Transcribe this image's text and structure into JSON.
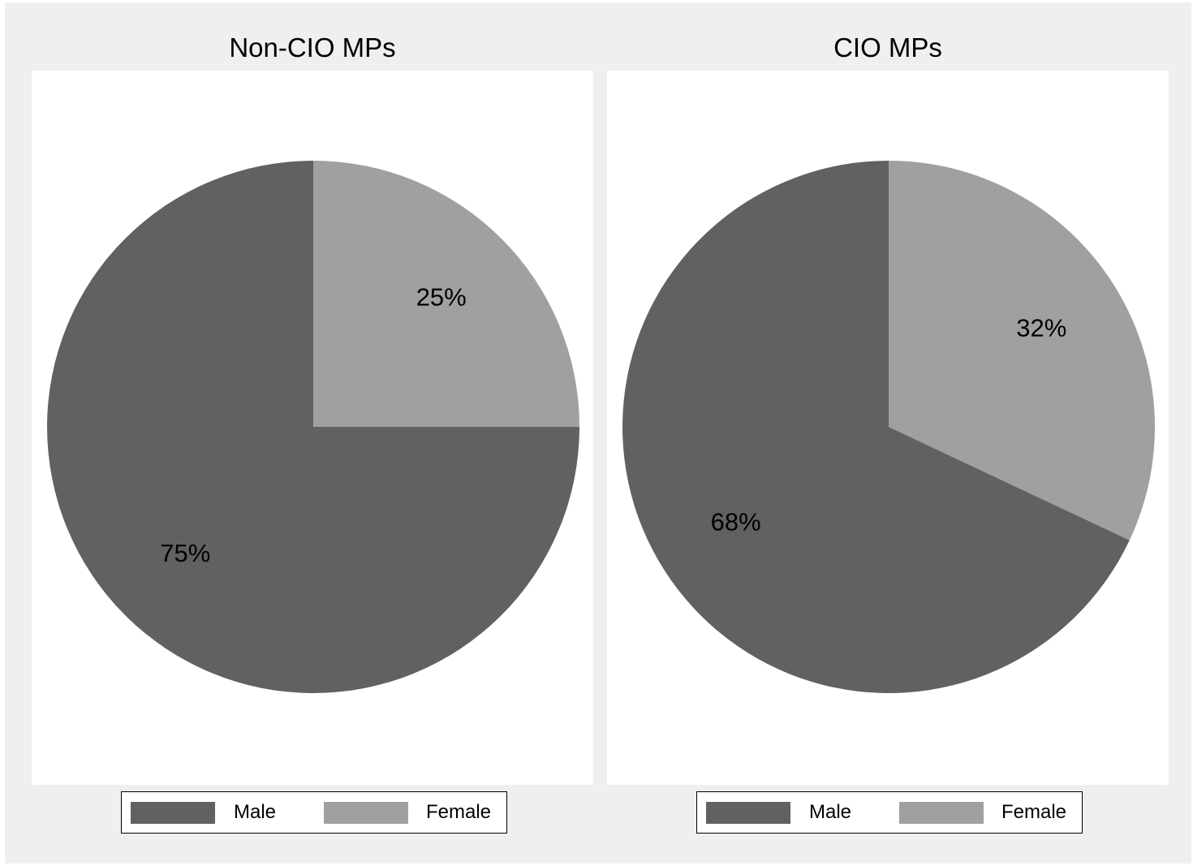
{
  "chart_data": [
    {
      "type": "pie",
      "title": "Non-CIO MPs",
      "categories": [
        "Male",
        "Female"
      ],
      "values": [
        75,
        25
      ],
      "labels": [
        "75%",
        "25%"
      ],
      "colors": [
        "#616161",
        "#a0a0a0"
      ],
      "legend": {
        "placement": "bottom",
        "entries": [
          "Male",
          "Female"
        ]
      }
    },
    {
      "type": "pie",
      "title": "CIO MPs",
      "categories": [
        "Male",
        "Female"
      ],
      "values": [
        68,
        32
      ],
      "labels": [
        "68%",
        "32%"
      ],
      "colors": [
        "#616161",
        "#a0a0a0"
      ],
      "legend": {
        "placement": "bottom",
        "entries": [
          "Male",
          "Female"
        ]
      }
    }
  ]
}
